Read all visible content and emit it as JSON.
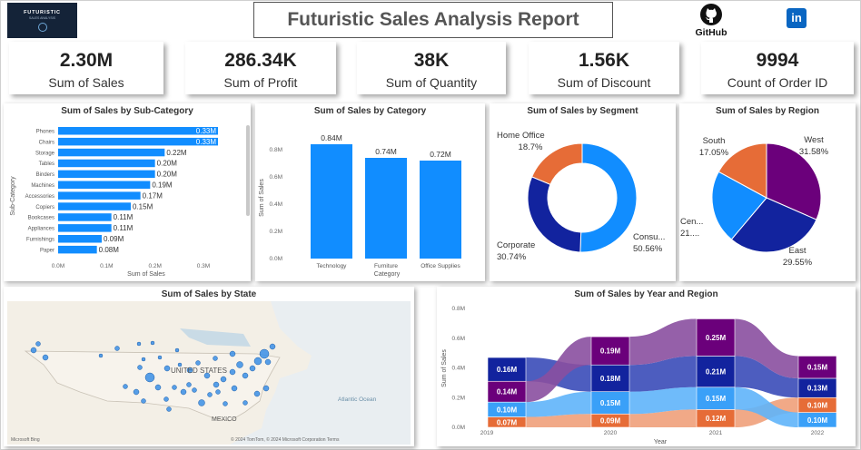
{
  "header": {
    "logo_text": "FUTURISTIC",
    "logo_subtext": "SALES ANALYSIS",
    "title": "Futuristic Sales Analysis Report",
    "github_label": "GitHub",
    "linkedin_label": "in"
  },
  "kpis": [
    {
      "value": "2.30M",
      "label": "Sum of Sales"
    },
    {
      "value": "286.34K",
      "label": "Sum of Profit"
    },
    {
      "value": "38K",
      "label": "Sum of Quantity"
    },
    {
      "value": "1.56K",
      "label": "Sum of Discount"
    },
    {
      "value": "9994",
      "label": "Count of Order ID"
    }
  ],
  "colors": {
    "bar": "#118dff",
    "navy": "#12239e",
    "orange": "#e66c37",
    "purple": "#6b007b",
    "lightpurple": "#8a4fa0",
    "lightblue": "#3aa0f8"
  },
  "map": {
    "title": "Sum of Sales by State",
    "labels": {
      "country": "UNITED STATES",
      "mexico": "MEXICO",
      "ocean": "Atlantic Ocean",
      "attribution": "© 2024 TomTom, © 2024 Microsoft Corporation  Terms",
      "bing": "Microsoft Bing"
    }
  },
  "chart_data": [
    {
      "type": "bar",
      "orientation": "horizontal",
      "title": "Sum of Sales by Sub-Category",
      "xlabel": "Sum of Sales",
      "ylabel": "Sub-Category",
      "categories": [
        "Phones",
        "Chairs",
        "Storage",
        "Tables",
        "Binders",
        "Machines",
        "Accessories",
        "Copiers",
        "Bookcases",
        "Appliances",
        "Furnishings",
        "Paper"
      ],
      "values": [
        0.33,
        0.33,
        0.22,
        0.2,
        0.2,
        0.19,
        0.17,
        0.15,
        0.11,
        0.11,
        0.09,
        0.08
      ],
      "data_labels": [
        "0.33M",
        "0.33M",
        "0.22M",
        "0.20M",
        "0.20M",
        "0.19M",
        "0.17M",
        "0.15M",
        "0.11M",
        "0.11M",
        "0.09M",
        "0.08M"
      ],
      "xticks": [
        "0.0M",
        "0.1M",
        "0.2M",
        "0.3M"
      ],
      "xlim": [
        0,
        0.36
      ]
    },
    {
      "type": "bar",
      "title": "Sum of Sales by Category",
      "xlabel": "Category",
      "ylabel": "Sum of Sales",
      "categories": [
        "Technology",
        "Furniture",
        "Office Supplies"
      ],
      "values": [
        0.84,
        0.74,
        0.72
      ],
      "data_labels": [
        "0.84M",
        "0.74M",
        "0.72M"
      ],
      "yticks": [
        "0.0M",
        "0.2M",
        "0.4M",
        "0.6M",
        "0.8M"
      ],
      "ylim": [
        0,
        0.9
      ]
    },
    {
      "type": "pie",
      "donut": true,
      "title": "Sum of Sales by Segment",
      "slices": [
        {
          "label": "Consu...",
          "value": 50.56,
          "text": "50.56%"
        },
        {
          "label": "Corporate",
          "value": 30.74,
          "text": "30.74%"
        },
        {
          "label": "Home Office",
          "value": 18.7,
          "text": "18.7%"
        }
      ]
    },
    {
      "type": "pie",
      "title": "Sum of Sales by Region",
      "slices": [
        {
          "label": "West",
          "value": 31.58,
          "text": "31.58%"
        },
        {
          "label": "East",
          "value": 29.55,
          "text": "29.55%"
        },
        {
          "label": "Cen...",
          "value": 21.8,
          "text": "21...."
        },
        {
          "label": "South",
          "value": 17.05,
          "text": "17.05%"
        }
      ]
    },
    {
      "type": "area",
      "subtype": "ribbon",
      "title": "Sum of Sales by Year and Region",
      "xlabel": "Year",
      "ylabel": "Sum of Sales",
      "categories": [
        "2019",
        "2020",
        "2021",
        "2022"
      ],
      "yticks": [
        "0.0M",
        "0.2M",
        "0.4M",
        "0.6M",
        "0.8M"
      ],
      "ylim": [
        0,
        0.8
      ],
      "series_order_bottom_to_top": [
        [
          {
            "label": "0.07M",
            "value": 0.07,
            "color": "#e66c37"
          },
          {
            "label": "0.10M",
            "value": 0.1,
            "color": "#3aa0f8"
          },
          {
            "label": "0.14M",
            "value": 0.14,
            "color": "#6b007b"
          },
          {
            "label": "0.16M",
            "value": 0.16,
            "color": "#12239e"
          }
        ],
        [
          {
            "label": "0.09M",
            "value": 0.09,
            "color": "#e66c37"
          },
          {
            "label": "0.15M",
            "value": 0.15,
            "color": "#3aa0f8"
          },
          {
            "label": "0.18M",
            "value": 0.18,
            "color": "#12239e"
          },
          {
            "label": "0.19M",
            "value": 0.19,
            "color": "#6b007b"
          }
        ],
        [
          {
            "label": "0.12M",
            "value": 0.12,
            "color": "#e66c37"
          },
          {
            "label": "0.15M",
            "value": 0.15,
            "color": "#3aa0f8"
          },
          {
            "label": "0.21M",
            "value": 0.21,
            "color": "#12239e"
          },
          {
            "label": "0.25M",
            "value": 0.25,
            "color": "#6b007b"
          }
        ],
        [
          {
            "label": "0.10M",
            "value": 0.1,
            "color": "#3aa0f8"
          },
          {
            "label": "0.10M",
            "value": 0.1,
            "color": "#e66c37"
          },
          {
            "label": "0.13M",
            "value": 0.13,
            "color": "#12239e"
          },
          {
            "label": "0.15M",
            "value": 0.15,
            "color": "#6b007b"
          }
        ]
      ]
    }
  ]
}
